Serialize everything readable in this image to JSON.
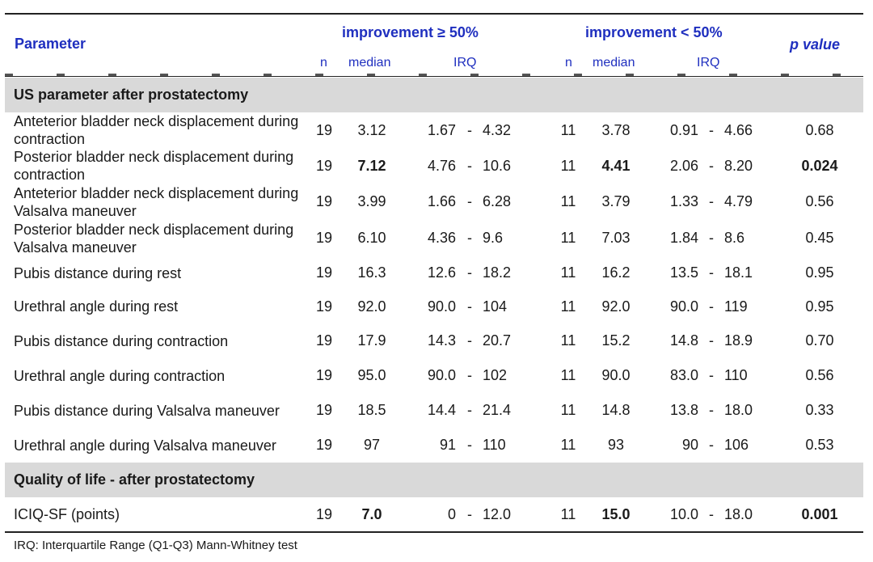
{
  "header": {
    "parameter": "Parameter",
    "group1": "improvement ≥ 50%",
    "group2": "improvement < 50%",
    "pvalue": "p value",
    "sub": {
      "n": "n",
      "median": "median",
      "irq": "IRQ"
    }
  },
  "section_us": "US parameter after prostatectomy",
  "section_qol": "Quality of life  - after prostatectomy",
  "rows": [
    {
      "param": "Anteterior bladder neck displacement during contraction",
      "n1": "19",
      "m1": "3.12",
      "lo1": "1.67",
      "hi1": "4.32",
      "n2": "11",
      "m2": "3.78",
      "lo2": "0.91",
      "hi2": "4.66",
      "p": "0.68"
    },
    {
      "param": "Posterior bladder neck displacement during contraction",
      "n1": "19",
      "m1": "7.12",
      "lo1": "4.76",
      "hi1": "10.6",
      "n2": "11",
      "m2": "4.41",
      "lo2": "2.06",
      "hi2": "8.20",
      "p": "0.024"
    },
    {
      "param": "Anteterior bladder neck displacement during Valsalva maneuver",
      "n1": "19",
      "m1": "3.99",
      "lo1": "1.66",
      "hi1": "6.28",
      "n2": "11",
      "m2": "3.79",
      "lo2": "1.33",
      "hi2": "4.79",
      "p": "0.56"
    },
    {
      "param": "Posterior bladder neck displacement during Valsalva maneuver",
      "n1": "19",
      "m1": "6.10",
      "lo1": "4.36",
      "hi1": "9.6",
      "n2": "11",
      "m2": "7.03",
      "lo2": "1.84",
      "hi2": "8.6",
      "p": "0.45"
    },
    {
      "param": "Pubis distance during rest",
      "n1": "19",
      "m1": "16.3",
      "lo1": "12.6",
      "hi1": "18.2",
      "n2": "11",
      "m2": "16.2",
      "lo2": "13.5",
      "hi2": "18.1",
      "p": "0.95"
    },
    {
      "param": "Urethral angle during rest",
      "n1": "19",
      "m1": "92.0",
      "lo1": "90.0",
      "hi1": "104",
      "n2": "11",
      "m2": "92.0",
      "lo2": "90.0",
      "hi2": "119",
      "p": "0.95"
    },
    {
      "param": "Pubis distance during contraction",
      "n1": "19",
      "m1": "17.9",
      "lo1": "14.3",
      "hi1": "20.7",
      "n2": "11",
      "m2": "15.2",
      "lo2": "14.8",
      "hi2": "18.9",
      "p": "0.70"
    },
    {
      "param": "Urethral angle during contraction",
      "n1": "19",
      "m1": "95.0",
      "lo1": "90.0",
      "hi1": "102",
      "n2": "11",
      "m2": "90.0",
      "lo2": "83.0",
      "hi2": "110",
      "p": "0.56"
    },
    {
      "param": "Pubis distance during Valsalva maneuver",
      "n1": "19",
      "m1": "18.5",
      "lo1": "14.4",
      "hi1": "21.4",
      "n2": "11",
      "m2": "14.8",
      "lo2": "13.8",
      "hi2": "18.0",
      "p": "0.33"
    },
    {
      "param": "Urethral angle during Valsalva maneuver",
      "n1": "19",
      "m1": "97",
      "lo1": "91",
      "hi1": "110",
      "n2": "11",
      "m2": "93",
      "lo2": "90",
      "hi2": "106",
      "p": "0.53"
    }
  ],
  "qol_row": {
    "param": "ICIQ-SF (points)",
    "n1": "19",
    "m1": "7.0",
    "lo1": "0",
    "hi1": "12.0",
    "n2": "11",
    "m2": "15.0",
    "lo2": "10.0",
    "hi2": "18.0",
    "p": "0.001"
  },
  "range_sep": "-",
  "footnote": "IRQ: Interquartile Range (Q1-Q3) Mann-Whitney test"
}
